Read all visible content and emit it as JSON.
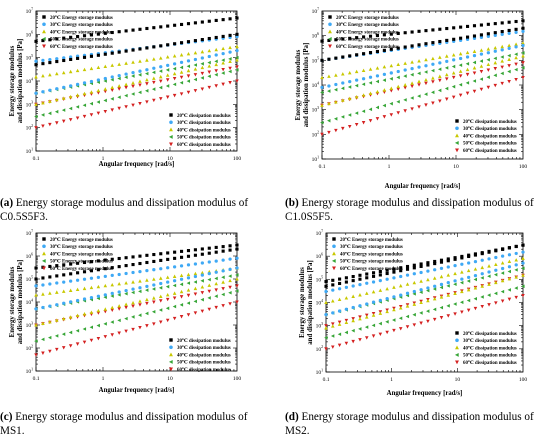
{
  "series_colors": [
    "#000000",
    "#3fa9f5",
    "#c8c800",
    "#35a535",
    "#d42020"
  ],
  "chart_data": [
    {
      "type": "scatter",
      "caption_letter": "(a)",
      "caption_text": "Energy storage modulus and dissipation modulus of C0.5S5F3.",
      "xlabel": "Angular frequency [rad/s]",
      "ylabel_line1": "Energy storage modulus",
      "ylabel_line2": "and dissipation modulus [Pa]",
      "xscale": "log",
      "yscale": "log",
      "xlim": [
        0.1,
        100
      ],
      "ylim": [
        10,
        10000000
      ],
      "xtick_labels": [
        "0.1",
        "1",
        "10",
        "100"
      ],
      "ytick_exponents": [
        "1",
        "2",
        "3",
        "4",
        "5",
        "6",
        "7"
      ],
      "legend_top": [
        "20℃ Energy storage modulus",
        "30℃ Energy storage modulus",
        "40℃ Energy storage modulus",
        "50℃ Energy storage modulus",
        "60℃ Energy storage modulus"
      ],
      "legend_bottom": [
        "20℃ dissipation modulus",
        "30℃ dissipation modulus",
        "40℃ dissipation modulus",
        "50℃ dissipation modulus",
        "60℃ dissipation modulus"
      ],
      "storage_series": [
        {
          "start": 500000,
          "end": 5000000
        },
        {
          "start": 70000,
          "end": 800000
        },
        {
          "start": 15000,
          "end": 300000
        },
        {
          "start": 3000,
          "end": 100000
        },
        {
          "start": 1000,
          "end": 40000
        }
      ],
      "loss_series": [
        {
          "start": 50000,
          "end": 1000000
        },
        {
          "start": 3000,
          "end": 200000
        },
        {
          "start": 1000,
          "end": 80000
        },
        {
          "start": 300,
          "end": 30000
        },
        {
          "start": 100,
          "end": 10000
        }
      ]
    },
    {
      "type": "scatter",
      "caption_letter": "(b)",
      "caption_text": "Energy storage modulus and dissipation modulus of C1.0S5F5.",
      "xlabel": "Angular frequency [rad/s]",
      "ylabel_line1": "Energy storage modulus",
      "ylabel_line2": "and dissipation modulus [Pa]",
      "xscale": "log",
      "yscale": "log",
      "xlim": [
        0.1,
        100
      ],
      "ylim": [
        10,
        10000000
      ],
      "xtick_labels": [
        "0.1",
        "1",
        "10",
        "100"
      ],
      "ytick_exponents": [
        "1",
        "2",
        "3",
        "4",
        "5",
        "6",
        "7"
      ],
      "legend_top": [
        "20℃ Energy storage modulus",
        "30℃ Energy storage modulus",
        "40℃ Energy storage modulus",
        "50℃ Energy storage modulus",
        "60℃ Energy storage modulus"
      ],
      "legend_bottom": [
        "20℃ dissipation modulus",
        "30℃ dissipation modulus",
        "40℃ dissipation modulus",
        "50℃ dissipation modulus",
        "60℃ dissipation modulus"
      ],
      "storage_series": [
        {
          "start": 600000,
          "end": 4000000
        },
        {
          "start": 100000,
          "end": 1500000
        },
        {
          "start": 20000,
          "end": 500000
        },
        {
          "start": 5000,
          "end": 200000
        },
        {
          "start": 1500,
          "end": 80000
        }
      ],
      "loss_series": [
        {
          "start": 100000,
          "end": 2000000
        },
        {
          "start": 8000,
          "end": 400000
        },
        {
          "start": 1500,
          "end": 150000
        },
        {
          "start": 300,
          "end": 50000
        },
        {
          "start": 100,
          "end": 20000
        }
      ]
    },
    {
      "type": "scatter",
      "caption_letter": "(c)",
      "caption_text": "Energy storage modulus and dissipation modulus of MS1.",
      "xlabel": "Angular frequency [rad/s]",
      "ylabel_line1": "Energy storage modulus",
      "ylabel_line2": "and dissipation modulus [Pa]",
      "xscale": "log",
      "yscale": "log",
      "xlim": [
        0.1,
        100
      ],
      "ylim": [
        10,
        10000000
      ],
      "xtick_labels": [
        "0.1",
        "1",
        "10",
        "100"
      ],
      "ytick_exponents": [
        "1",
        "2",
        "3",
        "4",
        "5",
        "6",
        "7"
      ],
      "legend_top": [
        "20℃ Energy storage modulus",
        "30℃ Energy storage modulus",
        "40℃ Energy storage modulus",
        "50℃ Energy storage modulus",
        "60℃ Energy storage modulus"
      ],
      "legend_bottom": [
        "20℃ dissipation modulus",
        "30℃ dissipation modulus",
        "40℃ dissipation modulus",
        "50℃ dissipation modulus",
        "60℃ dissipation modulus"
      ],
      "storage_series": [
        {
          "start": 300000,
          "end": 3000000
        },
        {
          "start": 50000,
          "end": 800000
        },
        {
          "start": 20000,
          "end": 300000
        },
        {
          "start": 5000,
          "end": 150000
        },
        {
          "start": 1000,
          "end": 50000
        }
      ],
      "loss_series": [
        {
          "start": 100000,
          "end": 2000000
        },
        {
          "start": 5000,
          "end": 300000
        },
        {
          "start": 1000,
          "end": 100000
        },
        {
          "start": 200,
          "end": 30000
        },
        {
          "start": 50,
          "end": 10000
        }
      ]
    },
    {
      "type": "scatter",
      "caption_letter": "(d)",
      "caption_text": "Energy storage modulus and dissipation modulus of MS2.",
      "xlabel": "Angular frequency [rad/s]",
      "ylabel_line1": "Energy storage modulus",
      "ylabel_line2": "and dissipation modulus [Pa]",
      "xscale": "log",
      "yscale": "log",
      "xlim": [
        0.1,
        100
      ],
      "ylim": [
        10,
        10000000
      ],
      "xtick_labels": [
        "0.1",
        "1",
        "10",
        "100"
      ],
      "ytick_exponents": [
        "1",
        "2",
        "3",
        "4",
        "5",
        "6",
        "7"
      ],
      "legend_top": [
        "20℃ Energy storage modulus",
        "30℃ Energy storage modulus",
        "40℃ Energy storage modulus",
        "50℃ Energy storage modulus",
        "60℃ Energy storage modulus"
      ],
      "legend_bottom": [
        "20℃ dissipation modulus",
        "30℃ dissipation modulus",
        "40℃ dissipation modulus",
        "50℃ dissipation modulus",
        "60℃ dissipation modulus"
      ],
      "storage_series": [
        {
          "start": 80000,
          "end": 3000000
        },
        {
          "start": 30000,
          "end": 1500000
        },
        {
          "start": 10000,
          "end": 800000
        },
        {
          "start": 3000,
          "end": 300000
        },
        {
          "start": 1000,
          "end": 150000
        }
      ],
      "loss_series": [
        {
          "start": 50000,
          "end": 3000000
        },
        {
          "start": 3000,
          "end": 500000
        },
        {
          "start": 800,
          "end": 150000
        },
        {
          "start": 300,
          "end": 50000
        },
        {
          "start": 100,
          "end": 20000
        }
      ]
    }
  ]
}
